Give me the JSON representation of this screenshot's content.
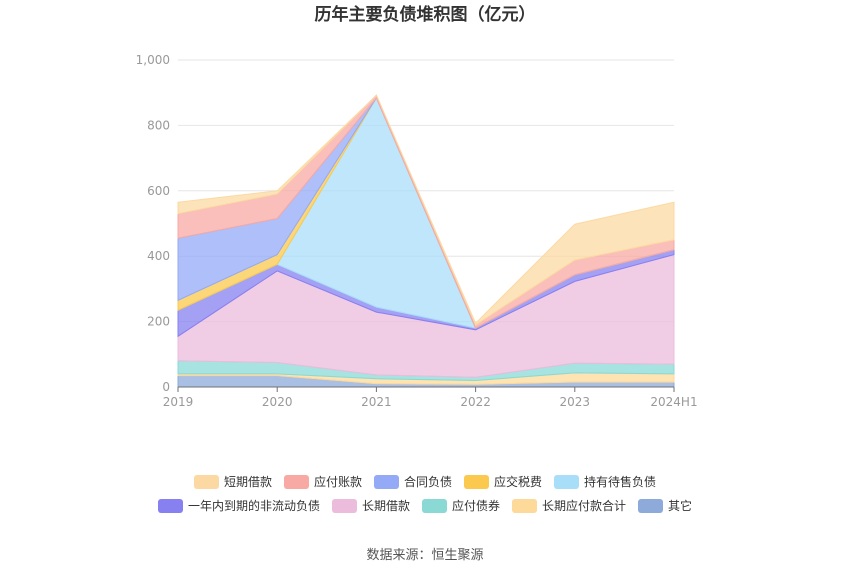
{
  "chart_data": {
    "type": "area",
    "stacked": true,
    "title": "历年主要负债堆积图（亿元）",
    "categories": [
      "2019",
      "2020",
      "2021",
      "2022",
      "2023",
      "2024H1"
    ],
    "ylim": [
      0,
      1000
    ],
    "yticks": [
      "0",
      "200",
      "400",
      "600",
      "800",
      "1,000"
    ],
    "grid": true,
    "legend_position": "bottom",
    "series": [
      {
        "name": "其它",
        "color": "#8eaadb",
        "values": [
          35,
          35,
          10,
          8,
          15,
          15
        ]
      },
      {
        "name": "长期应付款合计",
        "color": "#fdd99a",
        "values": [
          5,
          5,
          15,
          12,
          28,
          25
        ]
      },
      {
        "name": "应付债券",
        "color": "#8ad9d5",
        "values": [
          40,
          35,
          12,
          10,
          30,
          30
        ]
      },
      {
        "name": "长期借款",
        "color": "#ebbcdc",
        "values": [
          75,
          280,
          192,
          145,
          250,
          335
        ]
      },
      {
        "name": "一年内到期的非流动负债",
        "color": "#8680f0",
        "values": [
          80,
          20,
          15,
          5,
          20,
          15
        ]
      },
      {
        "name": "持有待售负债",
        "color": "#a9def8",
        "values": [
          0,
          0,
          640,
          0,
          0,
          0
        ]
      },
      {
        "name": "应交税费",
        "color": "#fbc94d",
        "values": [
          30,
          30,
          0,
          0,
          0,
          0
        ]
      },
      {
        "name": "合同负债",
        "color": "#94aaf7",
        "values": [
          190,
          110,
          0,
          0,
          0,
          0
        ]
      },
      {
        "name": "应付账款",
        "color": "#f8a9a3",
        "values": [
          75,
          75,
          8,
          10,
          45,
          30
        ]
      },
      {
        "name": "短期借款",
        "color": "#fcd9a2",
        "values": [
          35,
          10,
          0,
          5,
          110,
          115
        ]
      }
    ],
    "legend": [
      {
        "name": "短期借款",
        "color": "#fcd9a2"
      },
      {
        "name": "应付账款",
        "color": "#f8a9a3"
      },
      {
        "name": "合同负债",
        "color": "#94aaf7"
      },
      {
        "name": "应交税费",
        "color": "#fbc94d"
      },
      {
        "name": "持有待售负债",
        "color": "#a9def8"
      },
      {
        "name": "一年内到期的非流动负债",
        "color": "#8680f0"
      },
      {
        "name": "长期借款",
        "color": "#ebbcdc"
      },
      {
        "name": "应付债券",
        "color": "#8ad9d5"
      },
      {
        "name": "长期应付款合计",
        "color": "#fdd99a"
      },
      {
        "name": "其它",
        "color": "#8eaadb"
      }
    ]
  },
  "source": "数据来源：恒生聚源"
}
